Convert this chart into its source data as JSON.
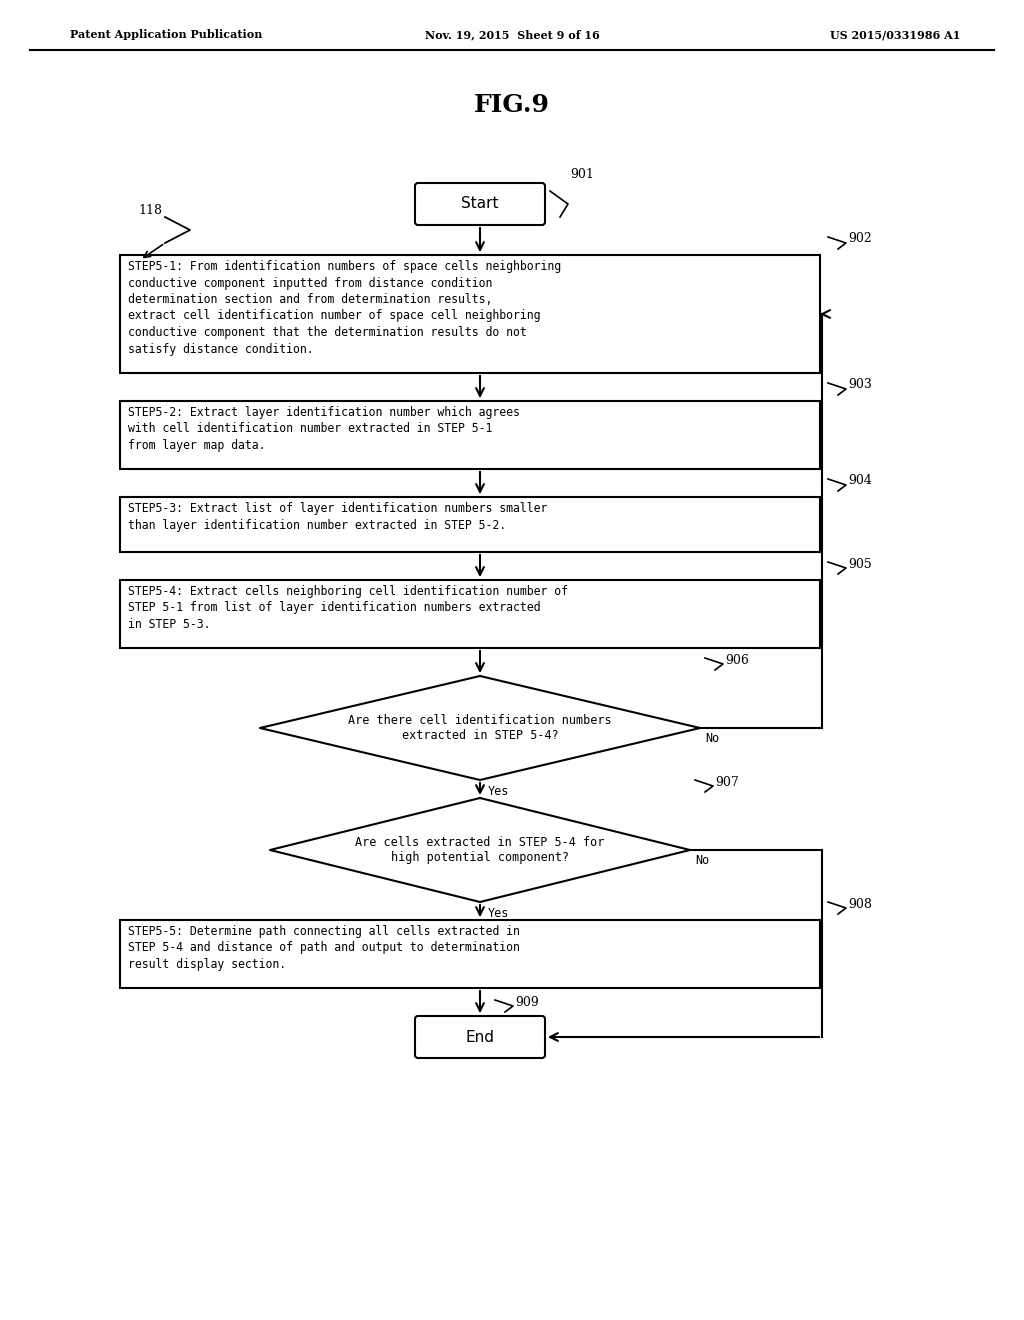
{
  "title": "FIG.9",
  "header_left": "Patent Application Publication",
  "header_mid": "Nov. 19, 2015  Sheet 9 of 16",
  "header_right": "US 2015/0331986 A1",
  "bg_color": "#ffffff",
  "label_118": "118",
  "label_901": "901",
  "label_902": "902",
  "label_903": "903",
  "label_904": "904",
  "label_905": "905",
  "label_906": "906",
  "label_907": "907",
  "label_908": "908",
  "label_909": "909",
  "start_text": "Start",
  "end_text": "End",
  "box902_text": "STEP5-1: From identification numbers of space cells neighboring\nconductive component inputted from distance condition\ndetermination section and from determination results,\nextract cell identification number of space cell neighboring\nconductive component that the determination results do not\nsatisfy distance condition.",
  "box903_text": "STEP5-2: Extract layer identification number which agrees\nwith cell identification number extracted in STEP 5-1\nfrom layer map data.",
  "box904_text": "STEP5-3: Extract list of layer identification numbers smaller\nthan layer identification number extracted in STEP 5-2.",
  "box905_text": "STEP5-4: Extract cells neighboring cell identification number of\nSTEP 5-1 from list of layer identification numbers extracted\nin STEP 5-3.",
  "diamond906_text": "Are there cell identification numbers\nextracted in STEP 5-4?",
  "diamond907_text": "Are cells extracted in STEP 5-4 for\nhigh potential component?",
  "box908_text": "STEP5-5: Determine path connecting all cells extracted in\nSTEP 5-4 and distance of path and output to determination\nresult display section.",
  "yes_label": "Yes",
  "no_label": "No"
}
